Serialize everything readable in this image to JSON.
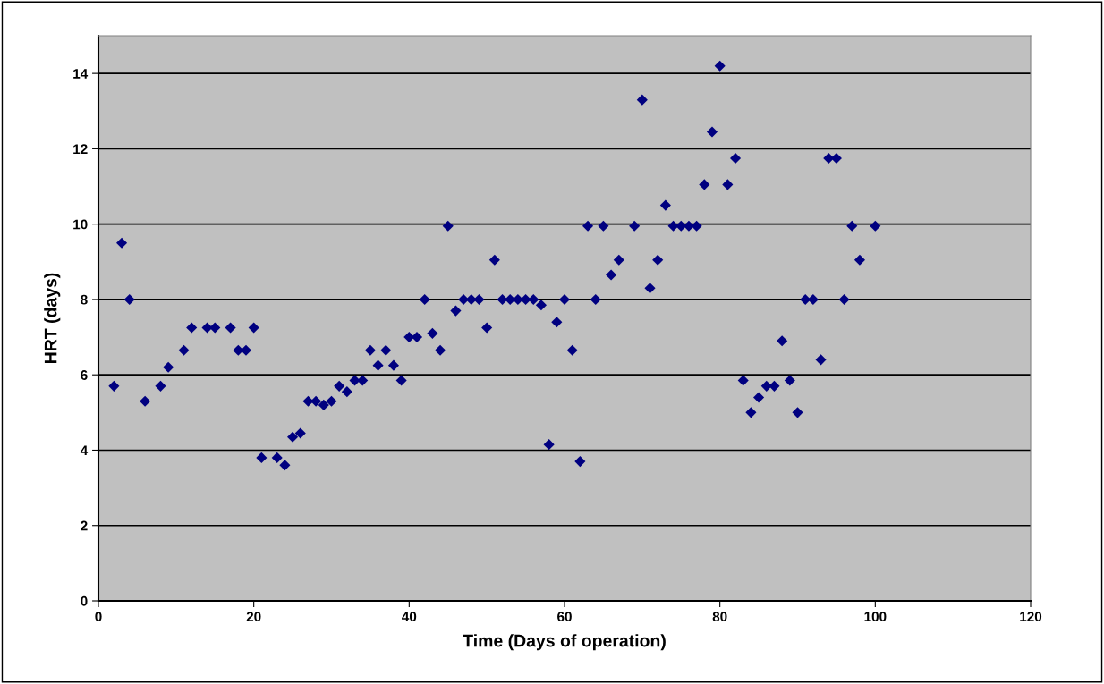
{
  "chart_data": {
    "type": "scatter",
    "xlabel": "Time (Days of operation)",
    "ylabel": "HRT (days)",
    "x": [
      2,
      3,
      4,
      6,
      8,
      9,
      11,
      12,
      14,
      15,
      17,
      18,
      19,
      20,
      21,
      23,
      24,
      25,
      26,
      27,
      28,
      29,
      30,
      31,
      32,
      33,
      34,
      35,
      36,
      37,
      38,
      39,
      40,
      41,
      42,
      43,
      44,
      45,
      46,
      47,
      48,
      49,
      50,
      51,
      52,
      53,
      54,
      55,
      56,
      57,
      58,
      59,
      60,
      61,
      62,
      63,
      64,
      65,
      66,
      67,
      69,
      70,
      71,
      72,
      73,
      74,
      75,
      76,
      77,
      78,
      79,
      80,
      81,
      82,
      83,
      84,
      85,
      86,
      87,
      88,
      89,
      90,
      91,
      92,
      93,
      94,
      95,
      96,
      97,
      98,
      100
    ],
    "series": [
      {
        "color": "#000080",
        "values": [
          5.7,
          9.5,
          8.0,
          5.3,
          5.7,
          6.2,
          6.65,
          7.25,
          7.25,
          7.25,
          7.25,
          6.65,
          6.65,
          7.25,
          3.8,
          3.8,
          3.6,
          4.35,
          4.45,
          5.3,
          5.3,
          5.2,
          5.3,
          5.7,
          5.55,
          5.85,
          5.85,
          6.65,
          6.25,
          6.65,
          6.25,
          5.85,
          7.0,
          7.0,
          8.0,
          7.1,
          6.65,
          9.95,
          7.7,
          8.0,
          8.0,
          8.0,
          7.25,
          9.05,
          8.0,
          8.0,
          8.0,
          8.0,
          8.0,
          7.85,
          4.15,
          7.4,
          8.0,
          6.65,
          3.7,
          9.95,
          8.0,
          9.95,
          8.65,
          9.05,
          9.95,
          13.3,
          8.3,
          9.05,
          10.5,
          9.95,
          9.95,
          9.95,
          9.95,
          11.05,
          12.45,
          14.2,
          11.05,
          11.75,
          5.85,
          5.0,
          5.4,
          5.7,
          5.7,
          6.9,
          5.85,
          5.0,
          8.0,
          8.0,
          6.4,
          11.75,
          11.75,
          8.0,
          9.95,
          9.05,
          9.95
        ]
      }
    ],
    "xlim": [
      0,
      120
    ],
    "xticks": [
      0,
      20,
      40,
      60,
      80,
      100,
      120
    ],
    "ylim": [
      0,
      15
    ],
    "yticks": [
      0,
      2,
      4,
      6,
      8,
      10,
      12,
      14
    ],
    "grid": "y",
    "marker": "diamond",
    "legend": false
  }
}
